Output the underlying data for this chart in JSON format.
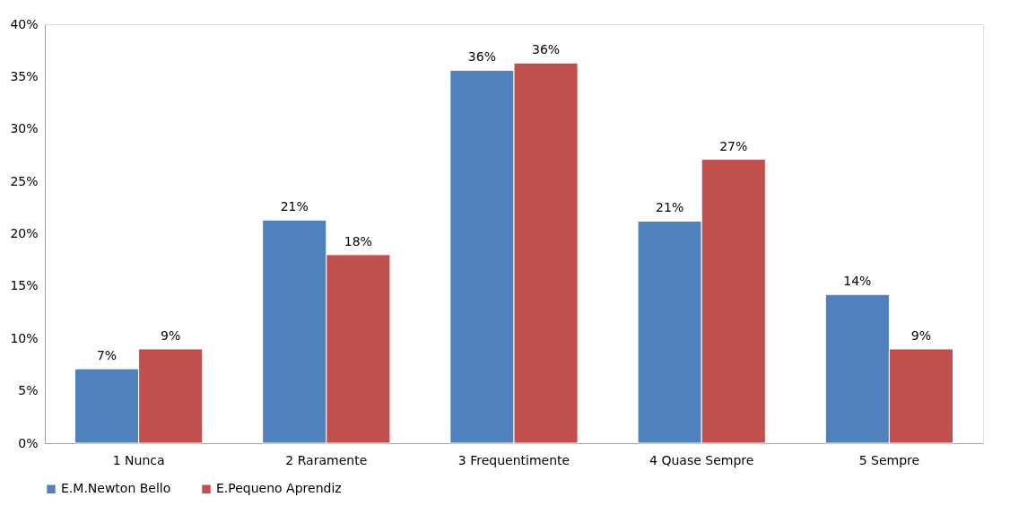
{
  "chart_data": {
    "type": "bar",
    "categories": [
      "1 Nunca",
      "2 Raramente",
      "3 Frequentimente",
      "4 Quase Sempre",
      "5 Sempre"
    ],
    "series": [
      {
        "name": "E.M.Newton Bello",
        "color": "#4f81bd",
        "values": [
          7.1,
          21.3,
          35.6,
          21.2,
          14.2
        ],
        "value_labels": [
          "7%",
          "21%",
          "36%",
          "21%",
          "14%"
        ]
      },
      {
        "name": "E.Pequeno Aprendiz",
        "color": "#c0504d",
        "values": [
          9.0,
          18.0,
          36.3,
          27.1,
          9.0
        ],
        "value_labels": [
          "9%",
          "18%",
          "36%",
          "27%",
          "9%"
        ]
      }
    ],
    "ylim": [
      0,
      40
    ],
    "yticks": [
      {
        "value": 0,
        "label": "0%"
      },
      {
        "value": 5,
        "label": "5%"
      },
      {
        "value": 10,
        "label": "10%"
      },
      {
        "value": 15,
        "label": "15%"
      },
      {
        "value": 20,
        "label": "20%"
      },
      {
        "value": 25,
        "label": "25%"
      },
      {
        "value": 30,
        "label": "30%"
      },
      {
        "value": 35,
        "label": "35%"
      },
      {
        "value": 40,
        "label": "40%"
      }
    ],
    "grid": false,
    "legend": "bottom"
  }
}
